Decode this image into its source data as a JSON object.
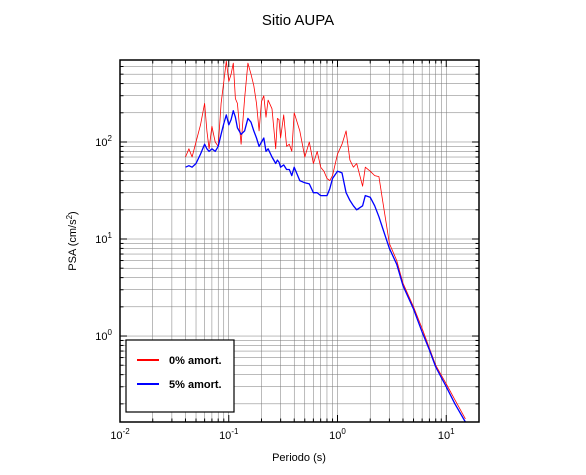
{
  "chart_data": {
    "type": "line",
    "title": "Sitio AUPA",
    "xlabel": "Periodo (s)",
    "ylabel_parts": {
      "base": "PSA (cm/s",
      "exp": "2",
      "close": ")"
    },
    "x_scale": "log",
    "y_scale": "log",
    "xlim": [
      0.01,
      20
    ],
    "ylim": [
      0.13,
      700
    ],
    "grid": true,
    "legend_placement": "bottom-left",
    "x_ticks": [
      {
        "value": 0.01,
        "base": "10",
        "exp": "-2"
      },
      {
        "value": 0.1,
        "base": "10",
        "exp": "-1"
      },
      {
        "value": 1,
        "base": "10",
        "exp": "0"
      },
      {
        "value": 10,
        "base": "10",
        "exp": "1"
      }
    ],
    "y_ticks": [
      {
        "value": 1,
        "base": "10",
        "exp": "0"
      },
      {
        "value": 10,
        "base": "10",
        "exp": "1"
      },
      {
        "value": 100,
        "base": "10",
        "exp": "2"
      }
    ],
    "series": [
      {
        "name": "0% amort.",
        "color": "#ff0000",
        "x": [
          0.04,
          0.043,
          0.046,
          0.05,
          0.055,
          0.06,
          0.063,
          0.066,
          0.07,
          0.075,
          0.08,
          0.085,
          0.09,
          0.095,
          0.1,
          0.105,
          0.11,
          0.115,
          0.12,
          0.13,
          0.14,
          0.15,
          0.16,
          0.17,
          0.18,
          0.19,
          0.2,
          0.21,
          0.22,
          0.23,
          0.25,
          0.27,
          0.28,
          0.29,
          0.3,
          0.32,
          0.34,
          0.36,
          0.38,
          0.4,
          0.45,
          0.5,
          0.55,
          0.6,
          0.65,
          0.7,
          0.75,
          0.8,
          0.85,
          0.9,
          1.0,
          1.1,
          1.2,
          1.3,
          1.4,
          1.5,
          1.7,
          1.8,
          2.0,
          2.2,
          2.4,
          2.6,
          3.0,
          3.5,
          4.0,
          5.0,
          6.0,
          7.0,
          8.0,
          10.0,
          12.0,
          15.0
        ],
        "y": [
          70,
          85,
          70,
          100,
          150,
          250,
          130,
          85,
          145,
          100,
          90,
          250,
          420,
          680,
          420,
          500,
          650,
          280,
          250,
          95,
          280,
          650,
          500,
          380,
          250,
          130,
          260,
          300,
          180,
          270,
          220,
          85,
          175,
          170,
          110,
          190,
          90,
          95,
          80,
          200,
          130,
          70,
          100,
          60,
          80,
          55,
          50,
          42,
          40,
          45,
          75,
          95,
          130,
          65,
          55,
          60,
          35,
          55,
          50,
          45,
          44,
          25,
          9.0,
          6.0,
          3.5,
          2.0,
          1.2,
          0.75,
          0.5,
          0.32,
          0.22,
          0.14
        ]
      },
      {
        "name": "5% amort.",
        "color": "#0000ff",
        "x": [
          0.04,
          0.043,
          0.046,
          0.05,
          0.055,
          0.06,
          0.063,
          0.066,
          0.07,
          0.075,
          0.08,
          0.085,
          0.09,
          0.095,
          0.1,
          0.105,
          0.11,
          0.115,
          0.12,
          0.13,
          0.14,
          0.15,
          0.16,
          0.17,
          0.18,
          0.19,
          0.2,
          0.21,
          0.22,
          0.23,
          0.25,
          0.27,
          0.28,
          0.29,
          0.3,
          0.32,
          0.34,
          0.36,
          0.38,
          0.4,
          0.45,
          0.5,
          0.55,
          0.6,
          0.65,
          0.7,
          0.75,
          0.8,
          0.85,
          0.9,
          1.0,
          1.1,
          1.2,
          1.3,
          1.4,
          1.5,
          1.7,
          1.8,
          2.0,
          2.2,
          2.4,
          2.6,
          3.0,
          3.5,
          4.0,
          5.0,
          6.0,
          7.0,
          8.0,
          10.0,
          12.0,
          15.0
        ],
        "y": [
          55,
          57,
          55,
          60,
          75,
          95,
          85,
          80,
          85,
          80,
          90,
          120,
          155,
          190,
          150,
          170,
          210,
          180,
          140,
          120,
          130,
          175,
          160,
          130,
          110,
          90,
          100,
          110,
          80,
          85,
          70,
          60,
          65,
          62,
          55,
          58,
          52,
          52,
          45,
          55,
          40,
          38,
          37,
          30,
          30,
          28,
          28,
          28,
          33,
          42,
          50,
          48,
          30,
          25,
          22,
          20,
          22,
          28,
          27,
          22,
          17,
          13,
          8.0,
          5.5,
          3.3,
          1.9,
          1.1,
          0.72,
          0.48,
          0.3,
          0.2,
          0.13
        ]
      }
    ]
  }
}
